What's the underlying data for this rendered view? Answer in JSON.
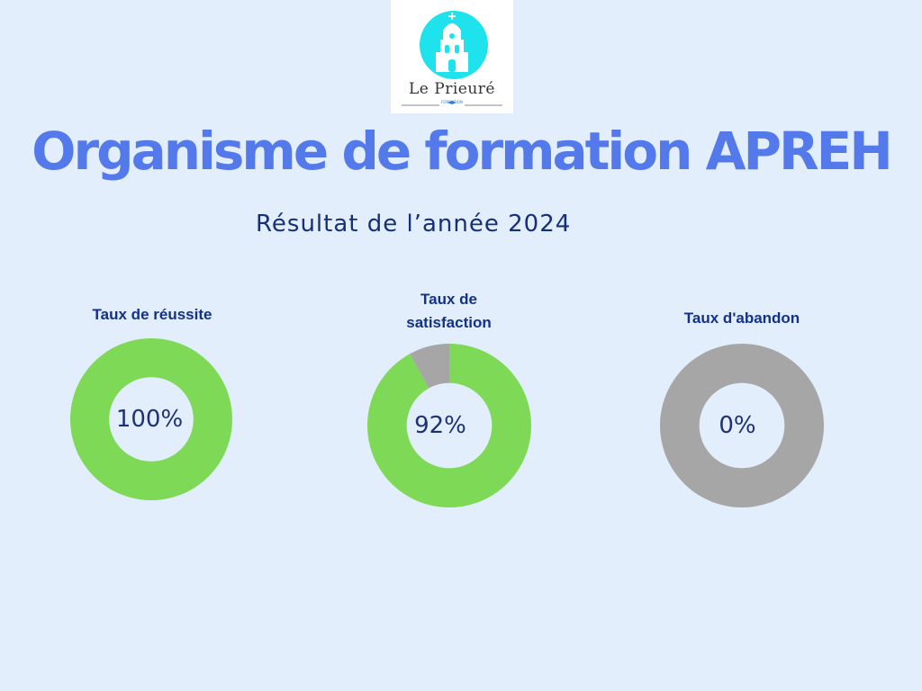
{
  "logo": {
    "name": "Le Prieuré",
    "subtitle": "FORMATION"
  },
  "title": "Organisme de formation APREH",
  "subtitle": "Résultat de l’année 2024",
  "colors": {
    "background": "#e2eefb",
    "title": "#5479ea",
    "positive": "#7ed957",
    "remainder": "#a6a6a6",
    "text": "#12318a"
  },
  "chart_data": [
    {
      "type": "pie",
      "title": "Taux de réussite",
      "label": "100%",
      "slices": [
        {
          "value": 100,
          "color": "#7ed957"
        },
        {
          "value": 0,
          "color": "#a6a6a6"
        }
      ]
    },
    {
      "type": "pie",
      "title": "Taux de satisfaction",
      "label": "92%",
      "slices": [
        {
          "value": 92,
          "color": "#7ed957"
        },
        {
          "value": 8,
          "color": "#a6a6a6"
        }
      ]
    },
    {
      "type": "pie",
      "title": "Taux d'abandon",
      "label": "0%",
      "slices": [
        {
          "value": 0,
          "color": "#7ed957"
        },
        {
          "value": 100,
          "color": "#a6a6a6"
        }
      ]
    }
  ]
}
